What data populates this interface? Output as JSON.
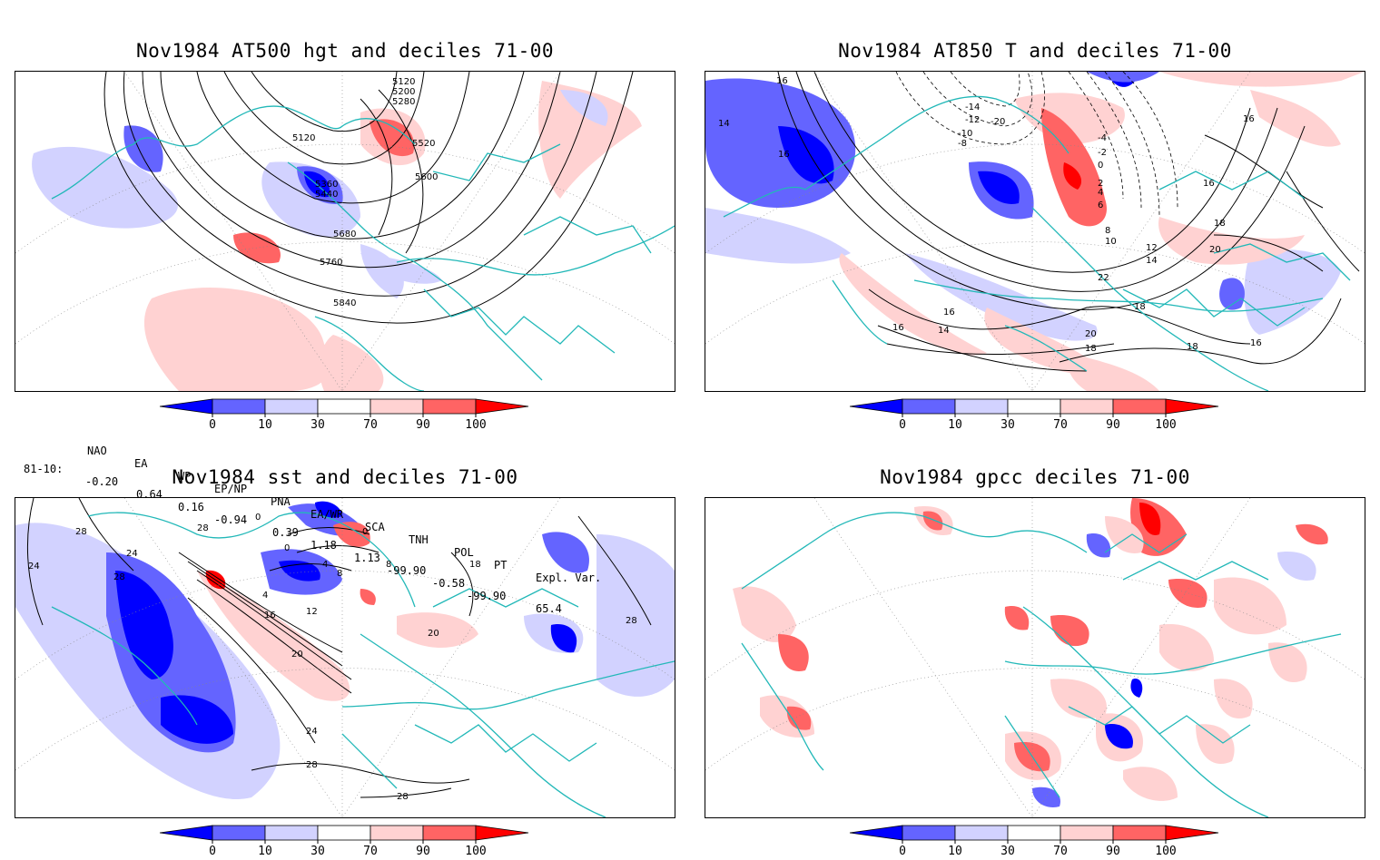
{
  "panels": [
    {
      "title": "Nov1984 AT500 hgt and deciles 71-00",
      "contour_labels": [
        "5120",
        "5120",
        "5200",
        "5280",
        "5520",
        "5600",
        "5360",
        "5440",
        "5680",
        "5760",
        "5840"
      ]
    },
    {
      "title": "Nov1984 AT850 T and deciles 71-00",
      "contour_labels": [
        "16",
        "14",
        "16",
        "16",
        "-20",
        "-14",
        "-12",
        "-10",
        "-8",
        "-4",
        "-2",
        "0",
        "2",
        "4",
        "6",
        "8",
        "10",
        "12",
        "14",
        "16",
        "18",
        "20",
        "22",
        "18",
        "16",
        "14",
        "16",
        "20",
        "18",
        "18",
        "16"
      ]
    },
    {
      "title": "Nov1984 sst and deciles 71-00",
      "contour_labels": [
        "28",
        "24",
        "28",
        "24",
        "0",
        "0",
        "0",
        "4",
        "8",
        "4",
        "12",
        "16",
        "20",
        "24",
        "28",
        "28",
        "28",
        "20",
        "8",
        "18",
        "28"
      ]
    },
    {
      "title": "Nov1984 gpcc deciles 71-00",
      "contour_labels": []
    }
  ],
  "colorbar": {
    "ticks": [
      "0",
      "10",
      "30",
      "70",
      "90",
      "100"
    ],
    "colors": [
      "#0000ff",
      "#6464ff",
      "#d2d2ff",
      "#ffffff",
      "#ffd2d2",
      "#ff6464",
      "#ff0000"
    ]
  },
  "indices": {
    "headers": [
      "NAO",
      "EA",
      "WP",
      "EP/NP",
      "PNA",
      "EA/WR",
      "SCA",
      "TNH",
      "POL",
      "PT",
      "Expl. Var."
    ],
    "row_label": "81-10:",
    "values": [
      "-0.20",
      "0.64",
      "0.16",
      "-0.94",
      "0.39",
      "1.18",
      "1.13",
      "-99.90",
      "-0.58",
      "-99.90",
      "65.4"
    ]
  },
  "colors": {
    "coast": "#22b8b8",
    "contour": "#000000",
    "grid": "#888888"
  }
}
